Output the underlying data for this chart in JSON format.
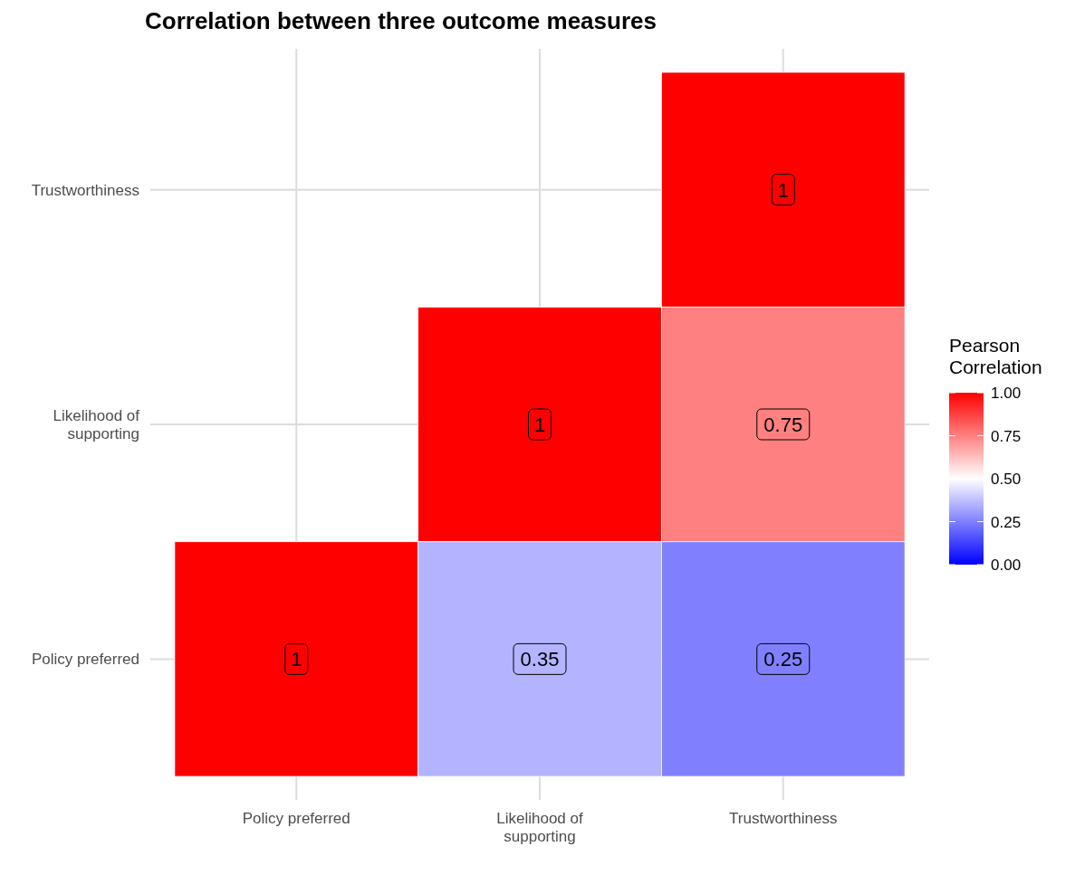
{
  "chart_data": {
    "type": "heatmap",
    "title": "Correlation between three outcome measures",
    "categories": [
      "Policy preferred",
      "Likelihood of supporting",
      "Trustworthiness"
    ],
    "y_categories": [
      "Trustworthiness",
      "Likelihood of supporting",
      "Policy preferred"
    ],
    "cells": [
      [
        null,
        null,
        1
      ],
      [
        null,
        1,
        0.75
      ],
      [
        1,
        0.35,
        0.25
      ]
    ],
    "colors": [
      "#0000ff",
      "#ffffff",
      "#ff0000"
    ],
    "clim": [
      0,
      1
    ],
    "cticks": [
      {
        "value": 0,
        "label": "0.00"
      },
      {
        "value": 0.25,
        "label": "0.25"
      },
      {
        "value": 0.5,
        "label": "0.50"
      },
      {
        "value": 0.75,
        "label": "0.75"
      },
      {
        "value": 1,
        "label": "1.00"
      }
    ],
    "legend_title": "Pearson Correlation",
    "data_labels": true,
    "grid": true
  }
}
